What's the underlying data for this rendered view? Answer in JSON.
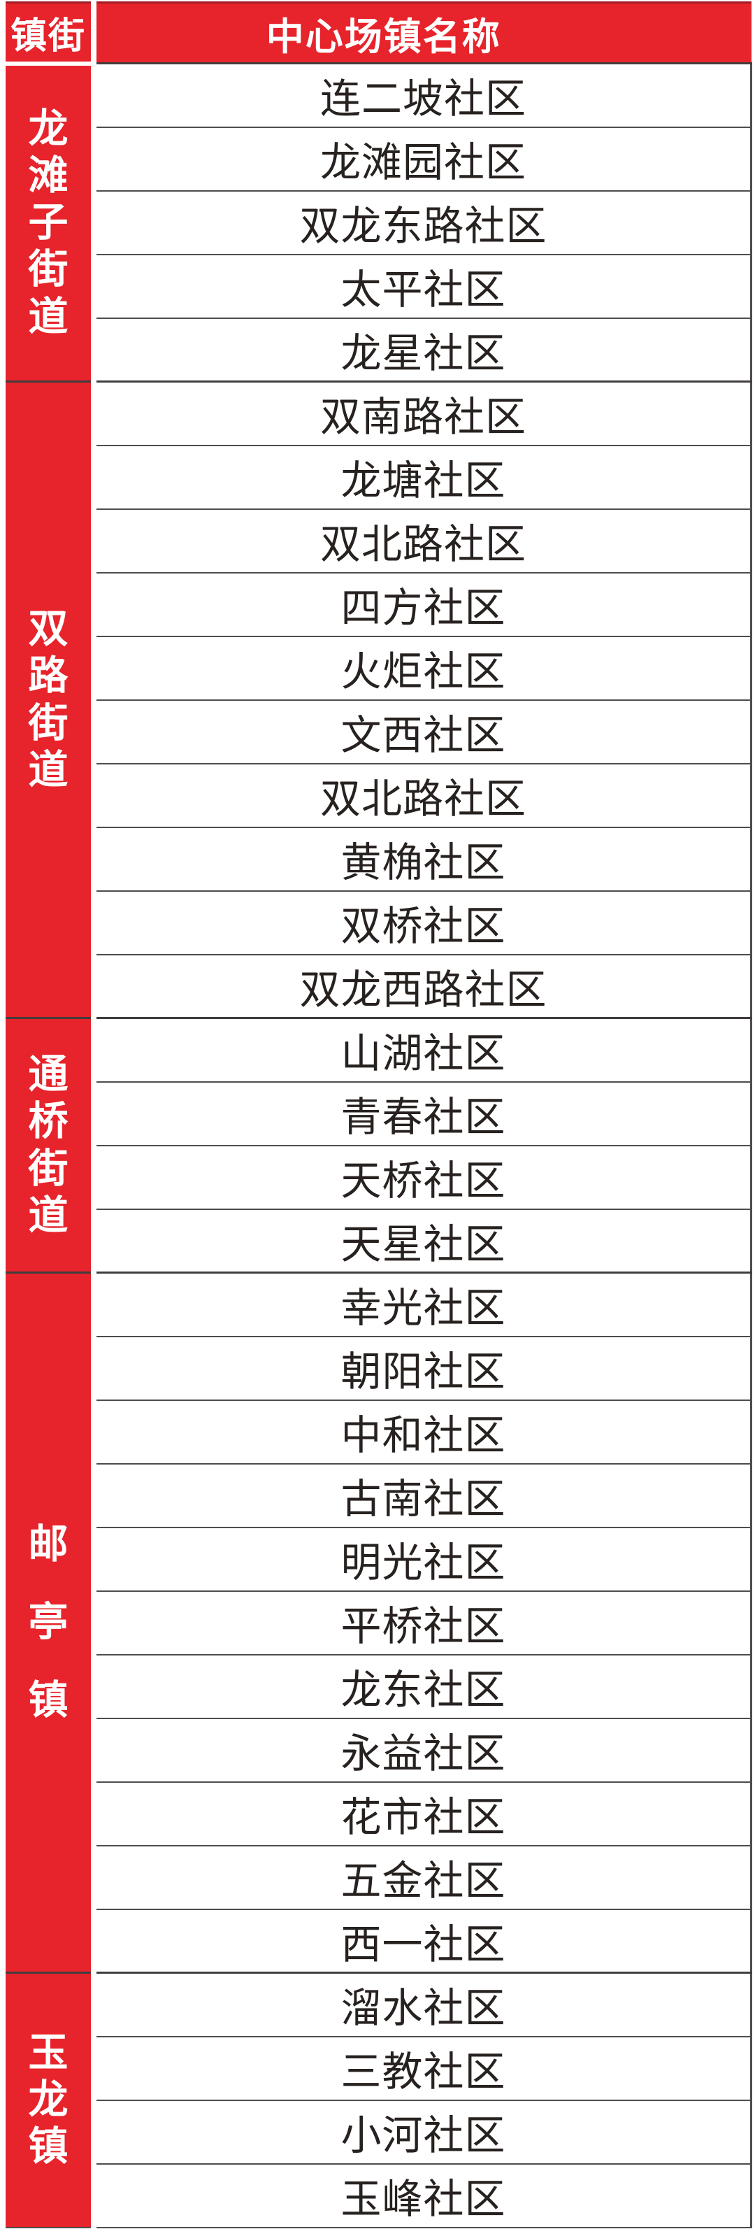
{
  "table": {
    "header": {
      "town_col": "镇街",
      "name_col": "中心场镇名称"
    },
    "groups": [
      {
        "town": "龙滩子街道",
        "communities": [
          "连二坡社区",
          "龙滩园社区",
          "双龙东路社区",
          "太平社区",
          "龙星社区"
        ]
      },
      {
        "town": "双路街道",
        "communities": [
          "双南路社区",
          "龙塘社区",
          "双北路社区",
          "四方社区",
          "火炬社区",
          "文西社区",
          "双北路社区",
          "黄桷社区",
          "双桥社区",
          "双龙西路社区"
        ]
      },
      {
        "town": "通桥街道",
        "communities": [
          "山湖社区",
          "青春社区",
          "天桥社区",
          "天星社区"
        ]
      },
      {
        "town": "邮亭镇",
        "communities": [
          "幸光社区",
          "朝阳社区",
          "中和社区",
          "古南社区",
          "明光社区",
          "平桥社区",
          "龙东社区",
          "永益社区",
          "花市社区",
          "五金社区",
          "西一社区"
        ]
      },
      {
        "town": "玉龙镇",
        "communities": [
          "溜水社区",
          "三教社区",
          "小河社区",
          "玉峰社区"
        ]
      }
    ],
    "colors": {
      "red": "#e7232b",
      "dark_red": "#a01d23",
      "row_line": "#4f4c4c",
      "group_line": "#413d3d",
      "text": "#27221f",
      "header_text": "#ffffff"
    }
  }
}
